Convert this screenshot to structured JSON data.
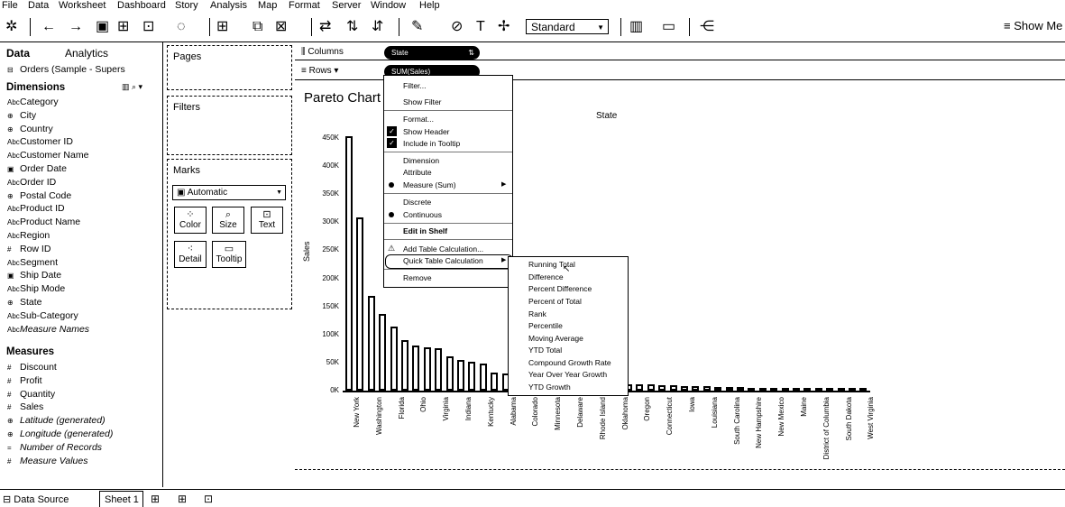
{
  "menubar": {
    "items": [
      "File",
      "Data",
      "Worksheet",
      "Dashboard",
      "Story",
      "Analysis",
      "Map",
      "Format",
      "Server",
      "Window",
      "Help"
    ]
  },
  "toolbar": {
    "standard_label": "Standard",
    "show_me_label": "Show Me"
  },
  "datapane": {
    "tab_data": "Data",
    "tab_analytics": "Analytics",
    "datasource": "Orders (Sample - Supers",
    "dimensions_header": "Dimensions",
    "dimensions": [
      {
        "icon": "Abc",
        "label": "Category"
      },
      {
        "icon": "⊕",
        "label": "City"
      },
      {
        "icon": "⊕",
        "label": "Country"
      },
      {
        "icon": "Abc",
        "label": "Customer ID"
      },
      {
        "icon": "Abc",
        "label": "Customer Name"
      },
      {
        "icon": "▣",
        "label": "Order Date"
      },
      {
        "icon": "Abc",
        "label": "Order ID"
      },
      {
        "icon": "⊕",
        "label": "Postal Code"
      },
      {
        "icon": "Abc",
        "label": "Product ID"
      },
      {
        "icon": "Abc",
        "label": "Product Name"
      },
      {
        "icon": "Abc",
        "label": "Region"
      },
      {
        "icon": "#",
        "label": "Row ID"
      },
      {
        "icon": "Abc",
        "label": "Segment"
      },
      {
        "icon": "▣",
        "label": "Ship Date"
      },
      {
        "icon": "Abc",
        "label": "Ship Mode"
      },
      {
        "icon": "⊕",
        "label": "State"
      },
      {
        "icon": "Abc",
        "label": "Sub-Category"
      },
      {
        "icon": "Abc",
        "label": "Measure Names"
      }
    ],
    "measures_header": "Measures",
    "measures": [
      {
        "icon": "#",
        "label": "Discount"
      },
      {
        "icon": "#",
        "label": "Profit"
      },
      {
        "icon": "#",
        "label": "Quantity"
      },
      {
        "icon": "#",
        "label": "Sales"
      },
      {
        "icon": "⊕",
        "label": "Latitude (generated)"
      },
      {
        "icon": "⊕",
        "label": "Longitude (generated)"
      },
      {
        "icon": "=",
        "label": "Number of Records"
      },
      {
        "icon": "#",
        "label": "Measure Values"
      }
    ]
  },
  "cards": {
    "pages": "Pages",
    "filters": "Filters",
    "marks": "Marks",
    "mark_type": "Automatic",
    "buttons": [
      "Color",
      "Size",
      "Text",
      "Detail",
      "Tooltip"
    ]
  },
  "shelves": {
    "columns_label": "Columns",
    "rows_label": "Rows",
    "columns_pill": "State",
    "rows_pill": "SUM(Sales)"
  },
  "view": {
    "title": "Pareto Chart",
    "x_header": "State",
    "y_label": "Sales",
    "y_ticks": [
      "450K",
      "400K",
      "350K",
      "300K",
      "250K",
      "200K",
      "150K",
      "100K",
      "50K",
      "0K"
    ],
    "categories": [
      "New York",
      "Washington",
      "Florida",
      "Ohio",
      "Virginia",
      "Indiana",
      "Kentucky",
      "Alabama",
      "Colorado",
      "Minnesota",
      "Delaware",
      "Rhode Island",
      "Oklahoma",
      "Oregon",
      "Connecticut",
      "Iowa",
      "Louisiana",
      "South Carolina",
      "New Hampshire",
      "New Mexico",
      "Maine",
      "District of Columbia",
      "South Dakota",
      "West Virginia"
    ]
  },
  "chart_data": {
    "type": "bar",
    "x_header": "State",
    "ylabel": "Sales",
    "ylim": [
      0,
      460000
    ],
    "values": [
      455000,
      310000,
      170000,
      138000,
      115000,
      90000,
      80000,
      78000,
      76000,
      62000,
      55000,
      52000,
      48000,
      32000,
      30000,
      28000,
      25000,
      22000,
      20000,
      19000,
      17000,
      16000,
      15000,
      14000,
      13000,
      12000,
      12000,
      11000,
      10000,
      9000,
      8500,
      8000,
      7500,
      7000,
      6500,
      6000,
      5500,
      5000,
      4500,
      4000,
      3800,
      3500,
      3200,
      3000,
      2800,
      2600,
      2400
    ]
  },
  "context_menu": {
    "items": [
      "Filter...",
      "Show Filter",
      "Format...",
      "Show Header",
      "Include in Tooltip",
      "Dimension",
      "Attribute",
      "Measure (Sum)",
      "Discrete",
      "Continuous",
      "Edit in Shelf",
      "Add Table Calculation...",
      "Quick Table Calculation",
      "Remove"
    ]
  },
  "submenu": {
    "items": [
      "Running Total",
      "Difference",
      "Percent Difference",
      "Percent of Total",
      "Rank",
      "Percentile",
      "Moving Average",
      "YTD Total",
      "Compound Growth Rate",
      "Year Over Year Growth",
      "YTD Growth"
    ]
  },
  "bottombar": {
    "datasource_tab": "Data Source",
    "sheet_tab": "Sheet 1"
  }
}
